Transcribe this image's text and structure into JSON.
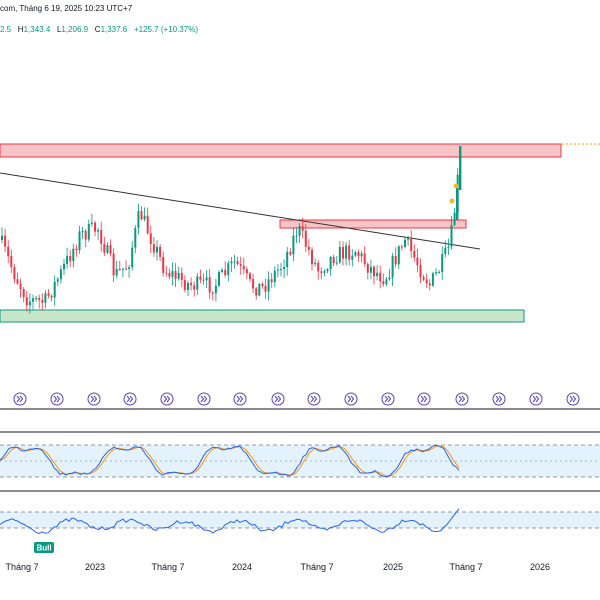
{
  "header": {
    "title_fragment": "com, Tháng 6 19, 2025 10:23 UTC+7",
    "open_fragment": "2.5",
    "high_label": "H",
    "high": "1,343.4",
    "low_label": "L",
    "low": "1,206.9",
    "close_label": "C",
    "close": "1,337.6",
    "change": "+125.7 (+10.37%)"
  },
  "colors": {
    "up": "#089981",
    "down": "#f23645",
    "resistance_zone": "#f7c5c8",
    "support_zone": "#c8e6c9",
    "trendline": "#333333",
    "stoch_k": "#2962ff",
    "stoch_d": "#ff9800",
    "rsi_line": "#2962ff",
    "band_fill": "#e3f2fd",
    "event_icon": "#5b3fc4"
  },
  "icons": {
    "event_marker": "double-chevron-right-icon"
  },
  "annotations": {
    "bull_label": "Bull"
  },
  "x_axis": {
    "labels": [
      "Tháng 7",
      "2023",
      "Tháng 7",
      "2024",
      "Tháng 7",
      "2025",
      "Tháng 7",
      "2026"
    ]
  },
  "chart_data": [
    {
      "type": "candlestick",
      "title": "",
      "description_series": "Price candles with horizontal zones and descending trendline",
      "x_range_months": [
        "2022-05",
        "2025-06"
      ],
      "y_trend": [
        {
          "period": "mid-2022",
          "approx_price": 720
        },
        {
          "period": "early-2023",
          "approx_price": 820
        },
        {
          "period": "mid-2023",
          "approx_price": 740
        },
        {
          "period": "early-2024",
          "approx_price": 700
        },
        {
          "period": "mid-2024",
          "approx_price": 800
        },
        {
          "period": "early-2025",
          "approx_price": 740
        },
        {
          "period": "2025-06",
          "approx_price": 1337.6
        }
      ],
      "zones": [
        {
          "name": "resistance-high",
          "level_approx": 1340
        },
        {
          "name": "resistance-mid",
          "level_approx": 880
        },
        {
          "name": "support",
          "level_approx": 620
        }
      ]
    },
    {
      "type": "line",
      "title": "",
      "series": [
        {
          "name": "",
          "values": []
        },
        {
          "name": "",
          "values": []
        }
      ],
      "bands": [
        20,
        80
      ]
    },
    {
      "type": "line",
      "title": "",
      "series": [
        {
          "name": "",
          "values": []
        }
      ],
      "bands": [
        30,
        70
      ]
    }
  ]
}
